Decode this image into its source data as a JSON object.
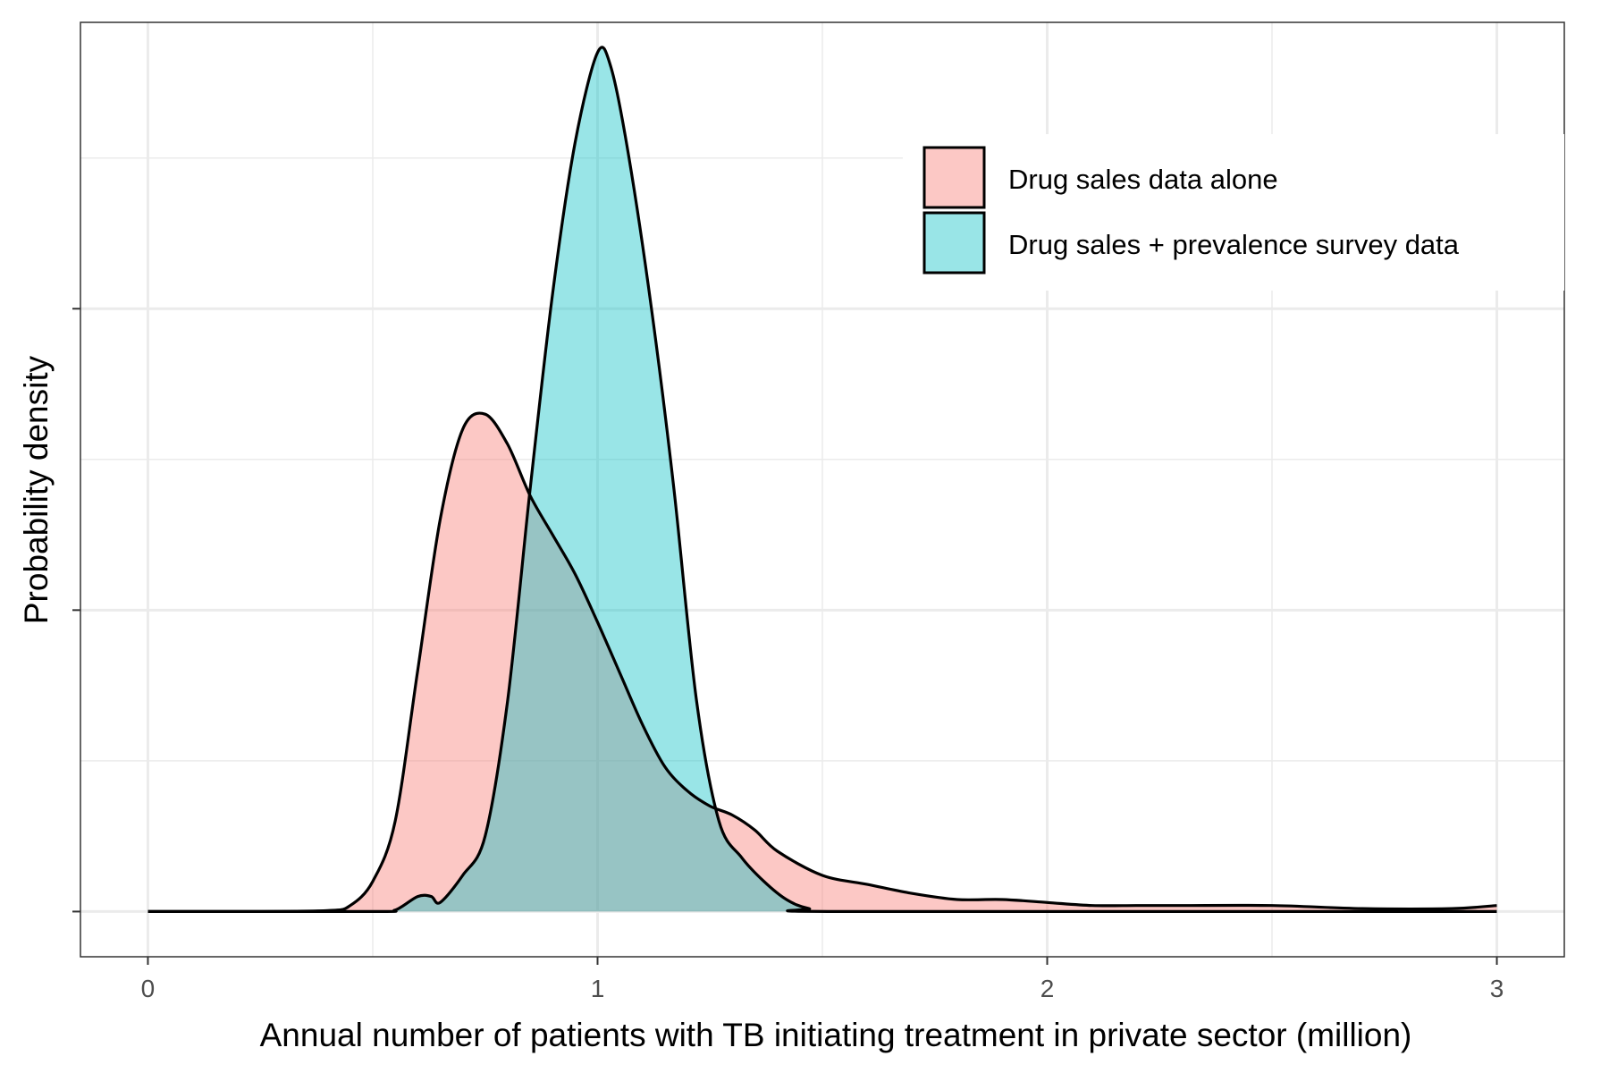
{
  "chart_data": {
    "type": "area",
    "chart_kind": "density",
    "title": "",
    "xlabel": "Annual number of patients with TB initiating treatment in private sector (million)",
    "ylabel": "Probability density",
    "xlim": [
      -0.15,
      3.15
    ],
    "ylim": [
      -0.15,
      2.95
    ],
    "x_ticks": [
      0,
      1,
      2,
      3
    ],
    "x_tick_labels": [
      "0",
      "1",
      "2",
      "3"
    ],
    "y_ticks": [
      0,
      1,
      2
    ],
    "y_tick_labels": [
      "",
      "",
      ""
    ],
    "grid": true,
    "legend_position": "top-right",
    "colors": {
      "drug_sales_alone": "#f8766d",
      "with_prevalence": "#00bfc4"
    },
    "fill_opacity": 0.4,
    "series": [
      {
        "name": "Drug sales data alone",
        "color": "#f8766d",
        "points": [
          [
            0,
            0
          ],
          [
            0.2,
            0
          ],
          [
            0.4,
            0.003
          ],
          [
            0.45,
            0.02
          ],
          [
            0.5,
            0.1
          ],
          [
            0.55,
            0.3
          ],
          [
            0.6,
            0.8
          ],
          [
            0.65,
            1.3
          ],
          [
            0.7,
            1.6
          ],
          [
            0.75,
            1.65
          ],
          [
            0.8,
            1.55
          ],
          [
            0.85,
            1.38
          ],
          [
            0.9,
            1.25
          ],
          [
            0.95,
            1.12
          ],
          [
            1.0,
            0.96
          ],
          [
            1.05,
            0.79
          ],
          [
            1.1,
            0.62
          ],
          [
            1.15,
            0.48
          ],
          [
            1.2,
            0.4
          ],
          [
            1.25,
            0.35
          ],
          [
            1.3,
            0.32
          ],
          [
            1.35,
            0.27
          ],
          [
            1.4,
            0.2
          ],
          [
            1.5,
            0.12
          ],
          [
            1.6,
            0.09
          ],
          [
            1.7,
            0.06
          ],
          [
            1.8,
            0.04
          ],
          [
            1.9,
            0.04
          ],
          [
            2.0,
            0.03
          ],
          [
            2.1,
            0.02
          ],
          [
            2.2,
            0.02
          ],
          [
            2.3,
            0.02
          ],
          [
            2.5,
            0.02
          ],
          [
            2.7,
            0.01
          ],
          [
            2.9,
            0.01
          ],
          [
            3.0,
            0.02
          ]
        ]
      },
      {
        "name": "Drug sales + prevalence survey data",
        "color": "#00bfc4",
        "points": [
          [
            0,
            0
          ],
          [
            0.5,
            0
          ],
          [
            0.55,
            0.005
          ],
          [
            0.6,
            0.05
          ],
          [
            0.63,
            0.05
          ],
          [
            0.65,
            0.03
          ],
          [
            0.7,
            0.12
          ],
          [
            0.75,
            0.25
          ],
          [
            0.8,
            0.7
          ],
          [
            0.85,
            1.4
          ],
          [
            0.9,
            2.05
          ],
          [
            0.95,
            2.55
          ],
          [
            1.0,
            2.85
          ],
          [
            1.03,
            2.8
          ],
          [
            1.07,
            2.5
          ],
          [
            1.12,
            2.0
          ],
          [
            1.17,
            1.4
          ],
          [
            1.22,
            0.7
          ],
          [
            1.27,
            0.3
          ],
          [
            1.32,
            0.18
          ],
          [
            1.37,
            0.1
          ],
          [
            1.42,
            0.04
          ],
          [
            1.47,
            0.01
          ],
          [
            1.55,
            0
          ],
          [
            3.0,
            0
          ]
        ]
      }
    ]
  }
}
